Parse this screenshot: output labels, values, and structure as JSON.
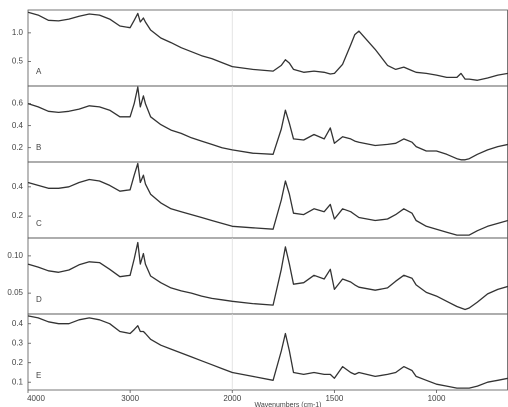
{
  "chart_data": [
    {
      "type": "line",
      "label": "A",
      "color": "#333333",
      "x": [
        4000,
        3900,
        3800,
        3700,
        3600,
        3500,
        3400,
        3300,
        3200,
        3100,
        3000,
        2960,
        2925,
        2900,
        2870,
        2850,
        2800,
        2700,
        2600,
        2500,
        2400,
        2300,
        2200,
        2100,
        2000,
        1900,
        1800,
        1760,
        1740,
        1720,
        1700,
        1650,
        1600,
        1550,
        1520,
        1500,
        1460,
        1420,
        1400,
        1380,
        1300,
        1240,
        1200,
        1160,
        1120,
        1100,
        1050,
        1000,
        950,
        900,
        880,
        860,
        840,
        800,
        750,
        700,
        650
      ],
      "values": [
        1.36,
        1.31,
        1.22,
        1.21,
        1.24,
        1.29,
        1.33,
        1.31,
        1.24,
        1.12,
        1.09,
        1.22,
        1.34,
        1.19,
        1.26,
        1.19,
        1.05,
        0.91,
        0.83,
        0.74,
        0.67,
        0.6,
        0.55,
        0.48,
        0.41,
        0.36,
        0.33,
        0.43,
        0.53,
        0.47,
        0.36,
        0.31,
        0.33,
        0.31,
        0.28,
        0.29,
        0.45,
        0.79,
        0.97,
        1.03,
        0.71,
        0.43,
        0.36,
        0.4,
        0.34,
        0.31,
        0.29,
        0.26,
        0.22,
        0.22,
        0.29,
        0.19,
        0.19,
        0.17,
        0.21,
        0.26,
        0.29
      ],
      "xlim": [
        4000,
        650
      ],
      "ylim": [
        0.07,
        1.4
      ],
      "yticks": [
        0.5,
        {
          "value": 1.0,
          "label": "1.0"
        }
      ]
    },
    {
      "type": "line",
      "label": "B",
      "color": "#333333",
      "x": [
        4000,
        3900,
        3800,
        3700,
        3600,
        3500,
        3400,
        3300,
        3200,
        3100,
        3000,
        2960,
        2925,
        2900,
        2870,
        2850,
        2800,
        2700,
        2600,
        2500,
        2400,
        2300,
        2200,
        2100,
        2000,
        1900,
        1800,
        1760,
        1740,
        1720,
        1700,
        1650,
        1600,
        1550,
        1520,
        1500,
        1460,
        1420,
        1400,
        1380,
        1300,
        1240,
        1200,
        1160,
        1120,
        1100,
        1050,
        1000,
        950,
        900,
        880,
        860,
        840,
        800,
        750,
        700,
        650
      ],
      "values": [
        0.6,
        0.57,
        0.53,
        0.52,
        0.53,
        0.55,
        0.58,
        0.57,
        0.54,
        0.48,
        0.48,
        0.6,
        0.75,
        0.57,
        0.67,
        0.6,
        0.48,
        0.41,
        0.36,
        0.33,
        0.29,
        0.26,
        0.23,
        0.2,
        0.18,
        0.15,
        0.14,
        0.37,
        0.54,
        0.42,
        0.28,
        0.27,
        0.32,
        0.28,
        0.38,
        0.24,
        0.3,
        0.28,
        0.26,
        0.25,
        0.22,
        0.23,
        0.24,
        0.28,
        0.25,
        0.21,
        0.17,
        0.17,
        0.14,
        0.1,
        0.09,
        0.09,
        0.1,
        0.14,
        0.18,
        0.21,
        0.23
      ],
      "xlim": [
        4000,
        650
      ],
      "ylim": [
        0.07,
        0.76
      ],
      "yticks": [
        0.2,
        0.4,
        0.6
      ]
    },
    {
      "type": "line",
      "label": "C",
      "color": "#333333",
      "x": [
        4000,
        3900,
        3800,
        3700,
        3600,
        3500,
        3400,
        3300,
        3200,
        3100,
        3000,
        2960,
        2925,
        2900,
        2870,
        2850,
        2800,
        2700,
        2600,
        2500,
        2400,
        2300,
        2200,
        2100,
        2000,
        1900,
        1800,
        1760,
        1740,
        1720,
        1700,
        1650,
        1600,
        1550,
        1520,
        1500,
        1460,
        1420,
        1400,
        1380,
        1300,
        1240,
        1200,
        1160,
        1120,
        1100,
        1050,
        1000,
        950,
        900,
        880,
        860,
        840,
        800,
        750,
        700,
        650
      ],
      "values": [
        0.43,
        0.41,
        0.39,
        0.39,
        0.4,
        0.43,
        0.45,
        0.44,
        0.41,
        0.37,
        0.38,
        0.48,
        0.56,
        0.43,
        0.48,
        0.42,
        0.35,
        0.29,
        0.25,
        0.23,
        0.21,
        0.19,
        0.17,
        0.15,
        0.13,
        0.12,
        0.11,
        0.31,
        0.44,
        0.35,
        0.22,
        0.21,
        0.25,
        0.23,
        0.28,
        0.18,
        0.25,
        0.23,
        0.21,
        0.19,
        0.17,
        0.18,
        0.21,
        0.25,
        0.22,
        0.17,
        0.13,
        0.11,
        0.09,
        0.07,
        0.07,
        0.07,
        0.07,
        0.1,
        0.13,
        0.15,
        0.17
      ],
      "xlim": [
        4000,
        650
      ],
      "ylim": [
        0.05,
        0.57
      ],
      "yticks": [
        0.2,
        0.4
      ]
    },
    {
      "type": "line",
      "label": "D",
      "color": "#333333",
      "x": [
        4000,
        3900,
        3800,
        3700,
        3600,
        3500,
        3400,
        3300,
        3200,
        3100,
        3000,
        2960,
        2925,
        2900,
        2870,
        2850,
        2800,
        2700,
        2600,
        2500,
        2400,
        2300,
        2200,
        2100,
        2000,
        1900,
        1800,
        1760,
        1740,
        1720,
        1700,
        1650,
        1600,
        1550,
        1520,
        1500,
        1460,
        1420,
        1400,
        1380,
        1300,
        1240,
        1200,
        1160,
        1120,
        1100,
        1050,
        1000,
        950,
        900,
        880,
        860,
        840,
        800,
        750,
        700,
        650
      ],
      "values": [
        0.089,
        0.085,
        0.08,
        0.078,
        0.081,
        0.088,
        0.092,
        0.091,
        0.082,
        0.072,
        0.074,
        0.096,
        0.118,
        0.089,
        0.103,
        0.089,
        0.073,
        0.064,
        0.057,
        0.053,
        0.05,
        0.046,
        0.043,
        0.041,
        0.039,
        0.036,
        0.034,
        0.082,
        0.112,
        0.089,
        0.062,
        0.064,
        0.074,
        0.069,
        0.082,
        0.055,
        0.069,
        0.065,
        0.061,
        0.058,
        0.054,
        0.057,
        0.066,
        0.074,
        0.07,
        0.061,
        0.051,
        0.046,
        0.039,
        0.032,
        0.03,
        0.028,
        0.03,
        0.038,
        0.049,
        0.055,
        0.059
      ],
      "xlim": [
        4000,
        650
      ],
      "ylim": [
        0.022,
        0.124
      ],
      "yticks": [
        0.05,
        {
          "value": 0.1,
          "label": "0.10"
        }
      ]
    },
    {
      "type": "line",
      "label": "E",
      "color": "#333333",
      "x": [
        4000,
        3900,
        3800,
        3700,
        3600,
        3500,
        3400,
        3300,
        3200,
        3100,
        3000,
        2960,
        2925,
        2900,
        2870,
        2850,
        2800,
        2700,
        2600,
        2500,
        2400,
        2300,
        2200,
        2100,
        2000,
        1900,
        1800,
        1760,
        1740,
        1720,
        1700,
        1650,
        1600,
        1550,
        1520,
        1500,
        1460,
        1420,
        1400,
        1380,
        1300,
        1240,
        1200,
        1160,
        1120,
        1100,
        1050,
        1000,
        950,
        900,
        880,
        860,
        840,
        800,
        750,
        700,
        650
      ],
      "values": [
        0.44,
        0.43,
        0.41,
        0.4,
        0.4,
        0.42,
        0.43,
        0.42,
        0.4,
        0.36,
        0.35,
        0.37,
        0.39,
        0.36,
        0.36,
        0.35,
        0.32,
        0.29,
        0.27,
        0.25,
        0.23,
        0.21,
        0.19,
        0.17,
        0.15,
        0.13,
        0.11,
        0.26,
        0.35,
        0.26,
        0.15,
        0.14,
        0.15,
        0.14,
        0.14,
        0.12,
        0.18,
        0.15,
        0.14,
        0.15,
        0.13,
        0.14,
        0.15,
        0.18,
        0.16,
        0.13,
        0.11,
        0.09,
        0.08,
        0.07,
        0.07,
        0.07,
        0.07,
        0.08,
        0.1,
        0.11,
        0.12
      ],
      "xlim": [
        4000,
        650
      ],
      "ylim": [
        0.06,
        0.45
      ],
      "yticks": [
        0.1,
        0.2,
        0.3,
        0.4
      ],
      "xticks": [
        4000,
        3000,
        2000,
        1500,
        1000
      ],
      "xlabel": "Wavenumbers (cm-1)"
    }
  ]
}
